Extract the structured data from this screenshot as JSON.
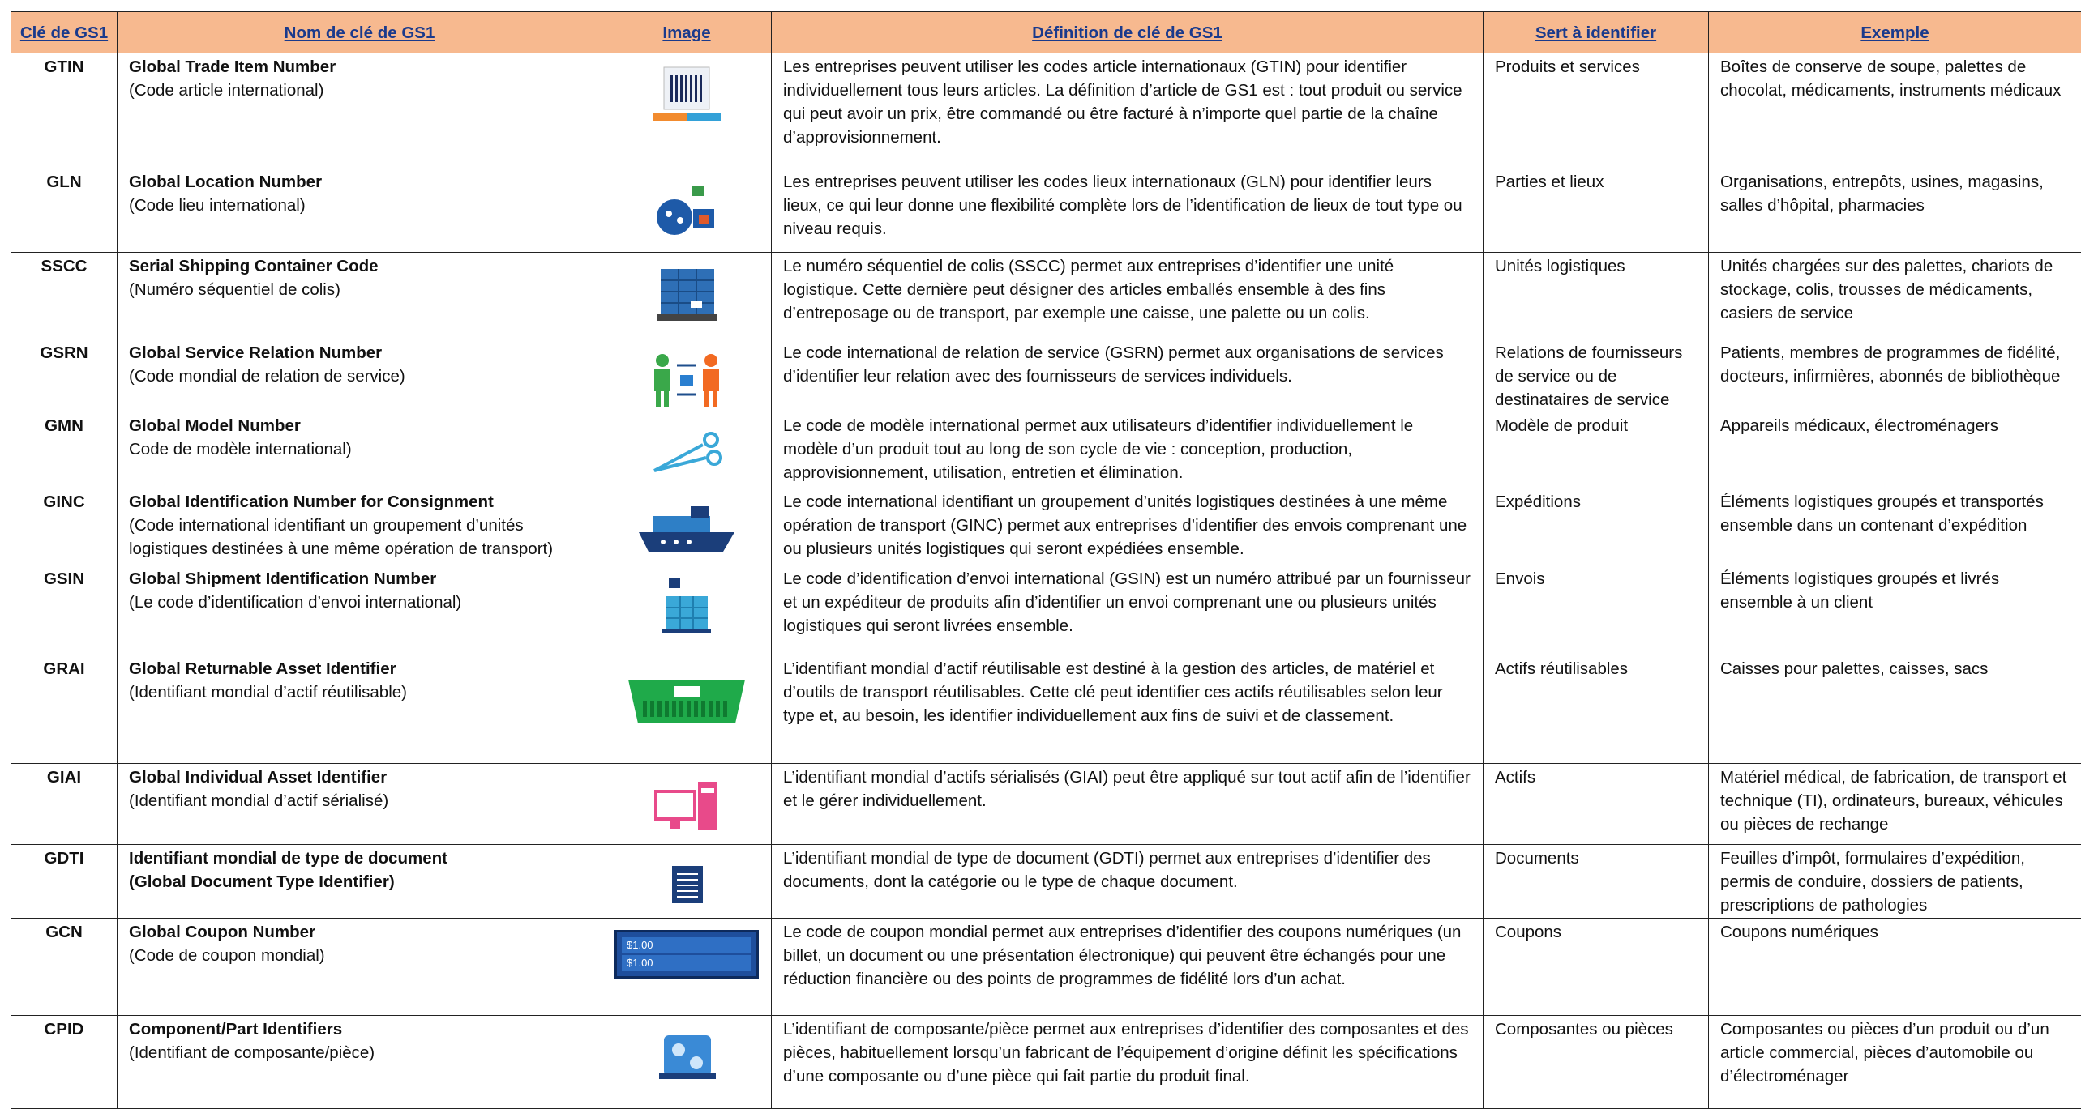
{
  "table": {
    "headers": [
      "Clé de GS1",
      "Nom de clé de GS1",
      "Image",
      "Définition de clé de GS1",
      "Sert à identifier",
      "Exemple"
    ],
    "rows": [
      {
        "key": "GTIN",
        "name_lines": [
          "Global Trade Item Number"
        ],
        "sub_lines": [
          "(Code article international)"
        ],
        "definition": "Les entreprises peuvent utiliser les codes article internationaux (GTIN) pour identifier individuellement tous leurs articles. La définition d’article de GS1 est : tout produit ou service qui peut avoir un prix, être commandé ou être facturé à n’importe quel partie de la chaîne d’approvisionnement.",
        "identifies": "Produits et services",
        "example": "Boîtes de conserve de soupe, palettes de chocolat, médicaments, instruments médicaux"
      },
      {
        "key": "GLN",
        "name_lines": [
          "Global Location Number"
        ],
        "sub_lines": [
          "(Code lieu international)"
        ],
        "definition": "Les entreprises peuvent utiliser les codes lieux internationaux (GLN) pour identifier leurs lieux, ce qui leur donne une flexibilité complète lors de l’identification de lieux de tout type ou niveau requis.",
        "identifies": "Parties et lieux",
        "example": "Organisations, entrepôts, usines, magasins, salles d’hôpital, pharmacies"
      },
      {
        "key": "SSCC",
        "name_lines": [
          "Serial Shipping Container Code"
        ],
        "sub_lines": [
          "(Numéro séquentiel de colis)"
        ],
        "definition": "Le numéro séquentiel de colis (SSCC) permet aux entreprises d’identifier une unité logistique. Cette dernière peut désigner des articles emballés ensemble à des fins d’entreposage ou de transport, par exemple une caisse, une palette ou un colis.",
        "identifies": "Unités logistiques",
        "example": "Unités chargées sur des palettes, chariots de stockage, colis, trousses de médicaments, casiers de service"
      },
      {
        "key": "GSRN",
        "name_lines": [
          "Global Service Relation Number"
        ],
        "sub_lines": [
          "(Code mondial de relation de service)"
        ],
        "definition": "Le code international de relation de service (GSRN) permet aux organisations de services d’identifier leur relation avec des fournisseurs de services individuels.",
        "identifies": "Relations de fournisseurs de service ou de destinataires de service",
        "example": "Patients, membres de programmes de fidélité, docteurs, infirmières, abonnés de bibliothèque"
      },
      {
        "key": "GMN",
        "name_lines": [
          "Global Model Number"
        ],
        "sub_lines": [
          "Code de modèle international)"
        ],
        "definition": "Le code de modèle international permet aux utilisateurs d’identifier individuellement le modèle d’un produit tout au long de son cycle de vie : conception, production, approvisionnement, utilisation, entretien et élimination.",
        "identifies": "Modèle de produit",
        "example": "Appareils médicaux, électroménagers"
      },
      {
        "key": "GINC",
        "name_lines": [
          "Global Identification Number for Consignment"
        ],
        "sub_lines": [
          "(Code international identifiant un groupement d’unités logistiques destinées à une même opération de transport)"
        ],
        "definition": "Le code international identifiant un groupement d’unités logistiques destinées à une même opération de transport (GINC) permet aux entreprises d’identifier des envois comprenant une ou plusieurs unités logistiques qui seront expédiées ensemble.",
        "identifies": "Expéditions",
        "example": "Éléments logistiques groupés et transportés ensemble dans un contenant d’expédition"
      },
      {
        "key": "GSIN",
        "name_lines": [
          "Global Shipment Identification Number"
        ],
        "sub_lines": [
          "(Le code d’identification d’envoi international)"
        ],
        "definition": "Le code d’identification d’envoi international (GSIN) est un numéro attribué par un fournisseur et un expéditeur de produits afin d’identifier un envoi comprenant une ou plusieurs unités logistiques qui seront livrées ensemble.",
        "identifies": "Envois",
        "example": "Éléments logistiques groupés et livrés ensemble à un client"
      },
      {
        "key": "GRAI",
        "name_lines": [
          "Global Returnable Asset Identifier"
        ],
        "sub_lines": [
          "(Identifiant mondial d’actif réutilisable)"
        ],
        "definition": "L’identifiant mondial d’actif réutilisable est destiné à la gestion des articles, de matériel et d’outils de transport réutilisables. Cette clé peut identifier ces actifs réutilisables selon leur type et, au besoin, les identifier individuellement aux fins de suivi et de classement.",
        "identifies": "Actifs réutilisables",
        "example": "Caisses pour palettes, caisses, sacs"
      },
      {
        "key": "GIAI",
        "name_lines": [
          "Global Individual Asset Identifier"
        ],
        "sub_lines": [
          "(Identifiant mondial d’actif sérialisé)"
        ],
        "definition": "L’identifiant mondial d’actifs sérialisés (GIAI) peut être appliqué sur tout actif afin de l’identifier et le gérer individuellement.",
        "identifies": "Actifs",
        "example": "Matériel médical, de fabrication, de transport et technique (TI), ordinateurs, bureaux, véhicules ou pièces de rechange"
      },
      {
        "key": "GDTI",
        "name_lines": [
          "Identifiant mondial de type de document",
          "(Global Document Type Identifier)"
        ],
        "definition": "L’identifiant mondial de type de document (GDTI) permet aux entreprises d’identifier des documents, dont la catégorie ou le type de chaque document.",
        "identifies": "Documents",
        "example": "Feuilles d’impôt, formulaires d’expédition, permis de conduire, dossiers de patients, prescriptions de pathologies"
      },
      {
        "key": "GCN",
        "name_lines": [
          "Global Coupon Number"
        ],
        "sub_lines": [
          "(Code de coupon mondial)"
        ],
        "image_texts": [
          "$1.00",
          "$1.00"
        ],
        "definition": "Le code de coupon mondial permet aux entreprises d’identifier des coupons numériques (un billet, un document ou une présentation électronique) qui peuvent être échangés pour une réduction financière ou des points de programmes de fidélité lors d’un achat.",
        "identifies": "Coupons",
        "example": "Coupons numériques"
      },
      {
        "key": "CPID",
        "name_lines": [
          "Component/Part Identifiers"
        ],
        "sub_lines": [
          "(Identifiant de composante/pièce)"
        ],
        "definition": "L’identifiant de composante/pièce permet aux entreprises d’identifier des composantes et des pièces, habituellement lorsqu’un fabricant de l’équipement d’origine définit les spécifications d’une composante ou d’une pièce qui fait partie du produit final.",
        "identifies": "Composantes ou pièces",
        "example": "Composantes ou pièces d’un produit ou d’un article commercial, pièces d’automobile ou d’électroménager"
      }
    ]
  }
}
